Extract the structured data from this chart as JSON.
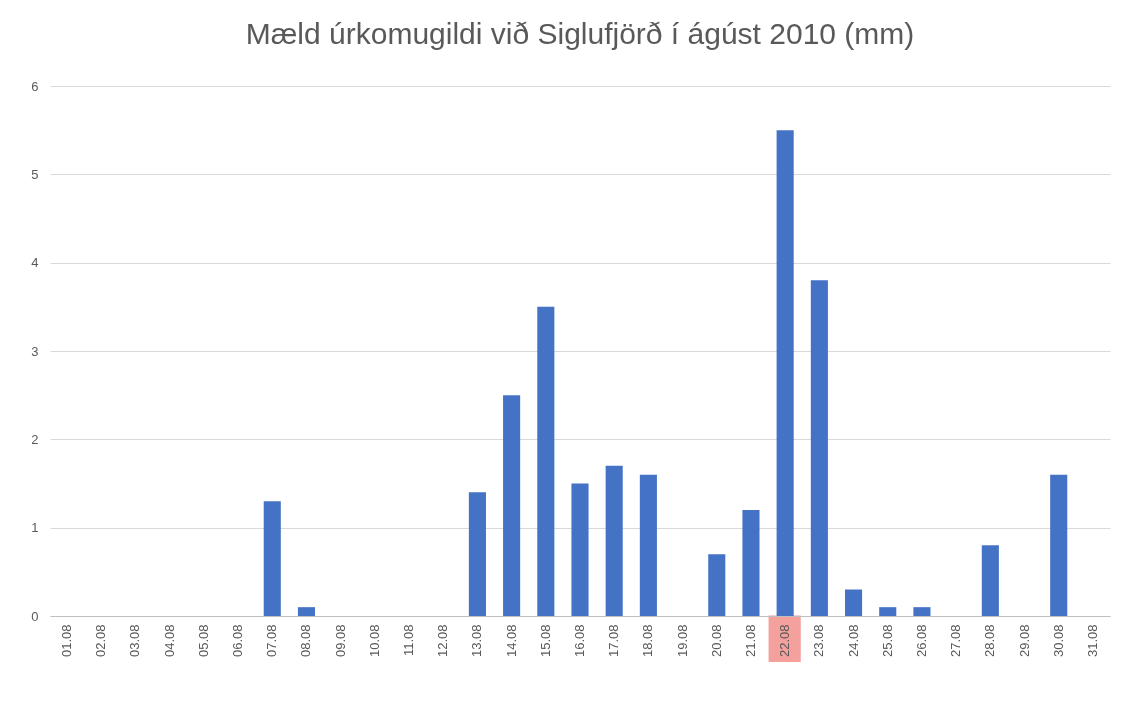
{
  "chart_data": {
    "type": "bar",
    "title": "Mæld úrkomugildi við Siglufjörð í ágúst 2010 (mm)",
    "categories": [
      "01.08",
      "02.08",
      "03.08",
      "04.08",
      "05.08",
      "06.08",
      "07.08",
      "08.08",
      "09.08",
      "10.08",
      "11.08",
      "12.08",
      "13.08",
      "14.08",
      "15.08",
      "16.08",
      "17.08",
      "18.08",
      "19.08",
      "20.08",
      "21.08",
      "22.08",
      "23.08",
      "24.08",
      "25.08",
      "26.08",
      "27.08",
      "28.08",
      "29.08",
      "30.08",
      "31.08"
    ],
    "values": [
      0,
      0,
      0,
      0,
      0,
      0,
      1.3,
      0.1,
      0,
      0,
      0,
      0,
      1.4,
      2.5,
      3.5,
      1.5,
      1.7,
      1.6,
      0,
      0.7,
      1.2,
      5.5,
      3.8,
      0.3,
      0.1,
      0.1,
      0,
      0.8,
      0,
      1.6,
      0
    ],
    "color": "#4472c4",
    "ylim": [
      0,
      6
    ],
    "yticks": [
      0,
      1,
      2,
      3,
      4,
      5,
      6
    ],
    "grid": "y"
  }
}
